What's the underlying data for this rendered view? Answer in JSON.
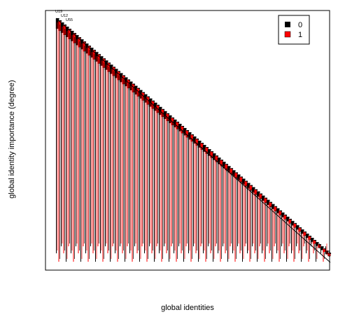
{
  "chart_data": {
    "type": "bar",
    "xlabel": "global identities",
    "ylabel": "global identity importance (degree)",
    "x_ticks": "none",
    "y_ticks": "none",
    "legend": {
      "placement": "top-right",
      "entries": [
        {
          "label": "0",
          "color": "#000000"
        },
        {
          "label": "1",
          "color": "#ff0000"
        }
      ]
    },
    "top_labels": [
      "U19",
      "U12",
      "U55"
    ],
    "n_bars": 112,
    "degree_max": 100,
    "degree_min": 2,
    "series_colors": {
      "0": "#000000",
      "1": "#ff0000"
    }
  }
}
